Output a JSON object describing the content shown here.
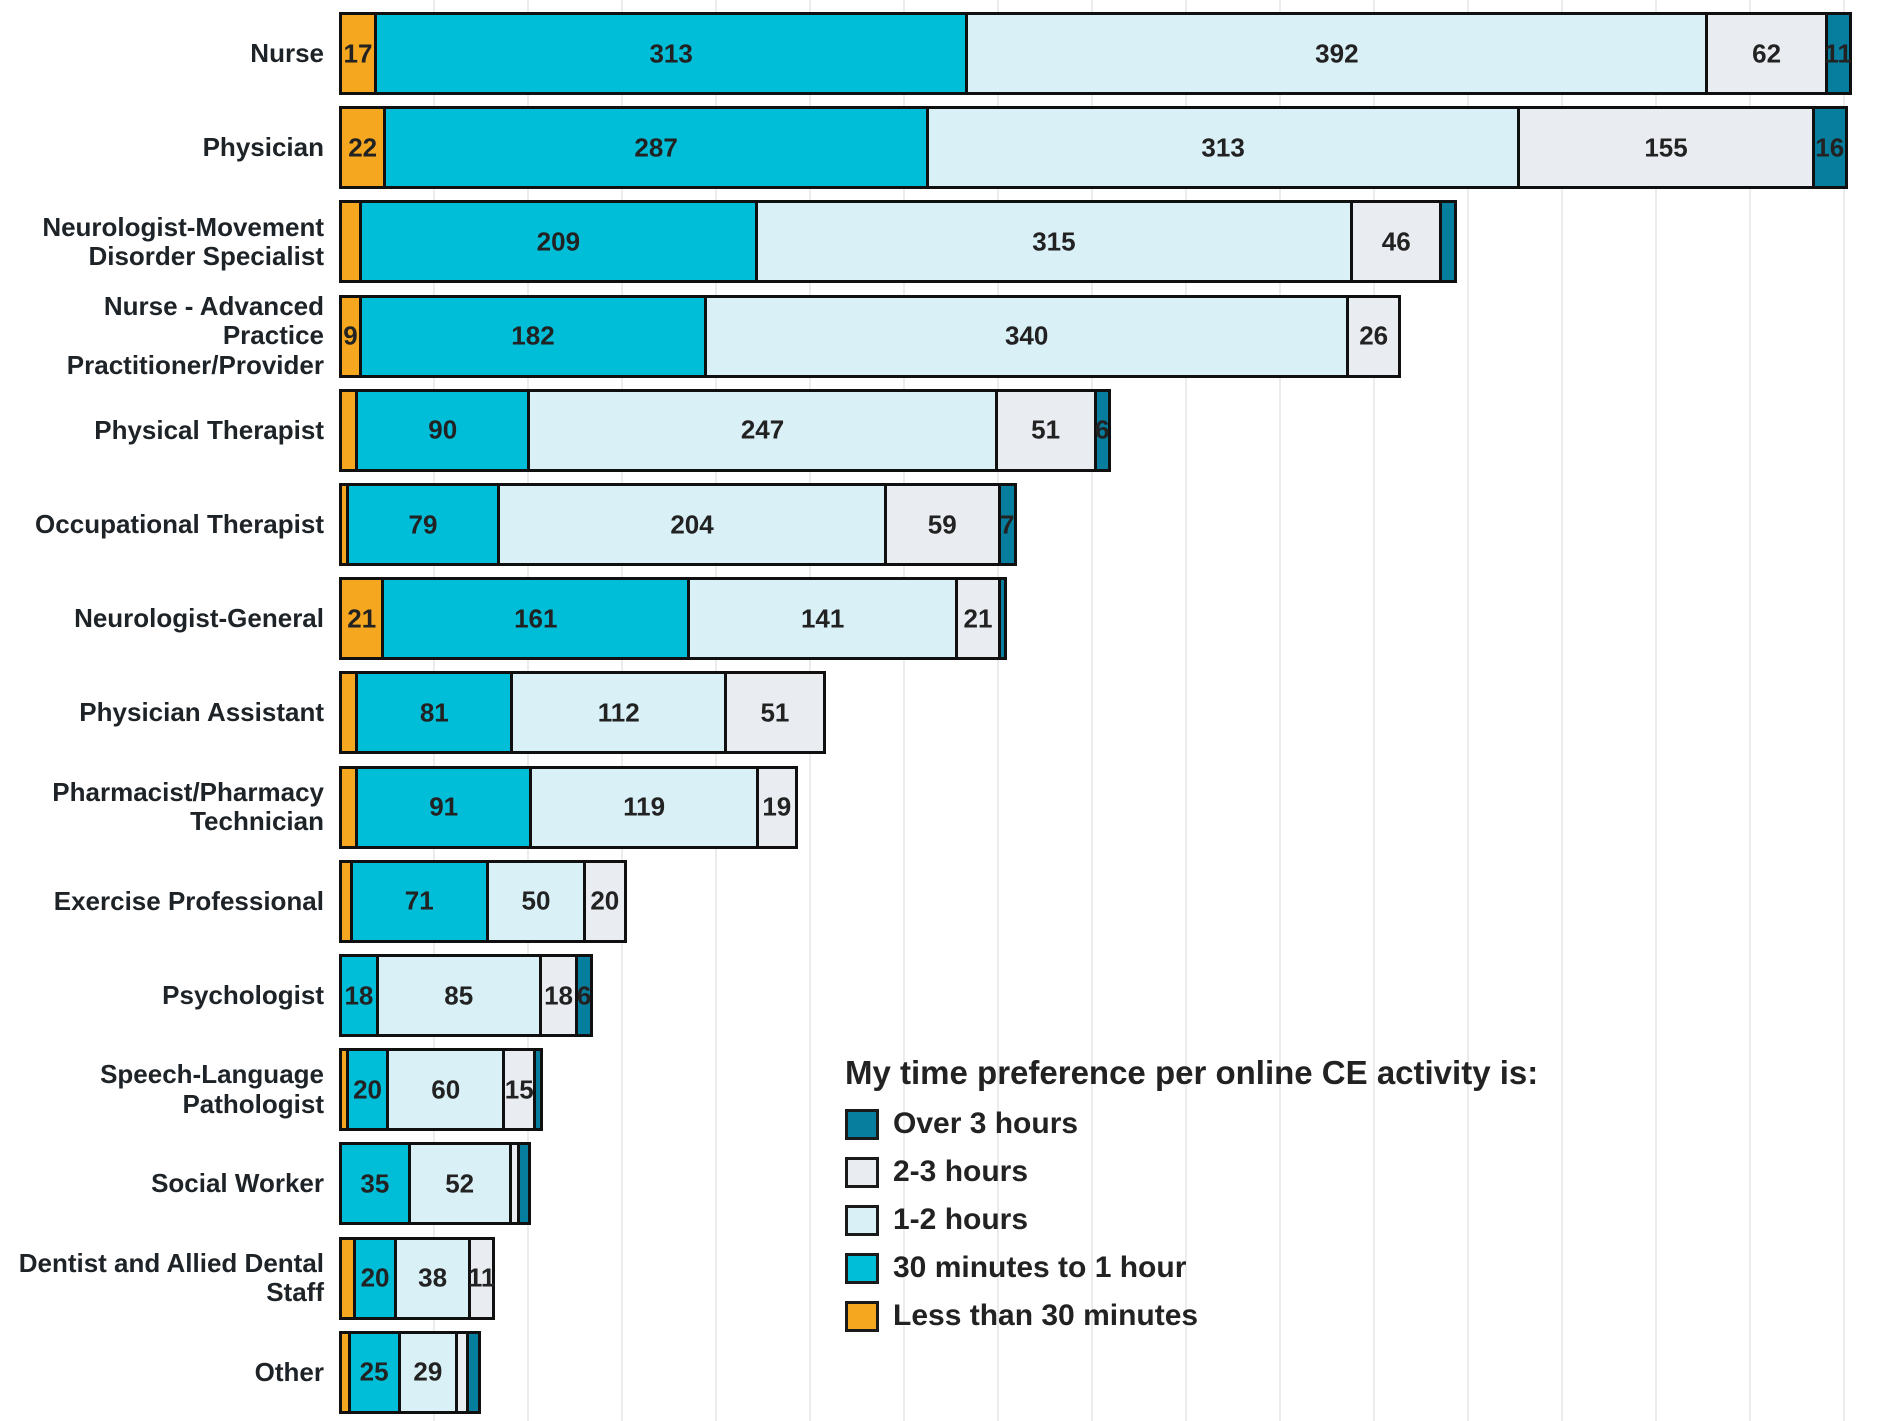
{
  "legend": {
    "title": "My time preference per online CE activity is:",
    "items": [
      {
        "label": "Over 3 hours",
        "color": "#087E9E"
      },
      {
        "label": "2-3 hours",
        "color": "#E9EDF1"
      },
      {
        "label": "1-2 hours",
        "color": "#D9F0F7"
      },
      {
        "label": "30 minutes to 1 hour",
        "color": "#00BDD8"
      },
      {
        "label": "Less than 30 minutes",
        "color": "#F5A71F"
      }
    ]
  },
  "chart_data": {
    "type": "bar",
    "orientation": "horizontal",
    "stacked": true,
    "title": "",
    "legend_title": "My time preference per online CE activity is:",
    "legend_position": "bottom-right",
    "grid": "vertical",
    "x_gridline_interval_units": 50,
    "x_range": [
      0,
      800
    ],
    "stack_order_left_to_right": [
      "Less than 30 minutes",
      "30 minutes to 1 hour",
      "1-2 hours",
      "2-3 hours",
      "Over 3 hours"
    ],
    "categories": [
      "Nurse",
      "Physician",
      "Neurologist-Movement Disorder Specialist",
      "Nurse - Advanced Practice Practitioner/Provider",
      "Physical Therapist",
      "Occupational Therapist",
      "Neurologist-General",
      "Physician Assistant",
      "Pharmacist/Pharmacy Technician",
      "Exercise Professional",
      "Psychologist",
      "Speech-Language Pathologist",
      "Social Worker",
      "Dentist and Allied Dental Staff",
      "Other"
    ],
    "rows": [
      {
        "category": "Nurse",
        "category_lines": [
          "Nurse"
        ],
        "segments": [
          {
            "series": "Less than 30 minutes",
            "value": 17,
            "label": "17"
          },
          {
            "series": "30 minutes to 1 hour",
            "value": 313,
            "label": "313"
          },
          {
            "series": "1-2 hours",
            "value": 392,
            "label": "392"
          },
          {
            "series": "2-3 hours",
            "value": 62,
            "label": "62"
          },
          {
            "series": "Over 3 hours",
            "value": 11,
            "label": "11"
          }
        ]
      },
      {
        "category": "Physician",
        "category_lines": [
          "Physician"
        ],
        "segments": [
          {
            "series": "Less than 30 minutes",
            "value": 22,
            "label": "22"
          },
          {
            "series": "30 minutes to 1 hour",
            "value": 287,
            "label": "287"
          },
          {
            "series": "1-2 hours",
            "value": 313,
            "label": "313"
          },
          {
            "series": "2-3 hours",
            "value": 155,
            "label": "155"
          },
          {
            "series": "Over 3 hours",
            "value": 16,
            "label": "16"
          }
        ]
      },
      {
        "category": "Neurologist-Movement Disorder Specialist",
        "category_lines": [
          "Neurologist-Movement",
          "Disorder Specialist"
        ],
        "segments": [
          {
            "series": "Less than 30 minutes",
            "value": 9,
            "label": ""
          },
          {
            "series": "30 minutes to 1 hour",
            "value": 209,
            "label": "209"
          },
          {
            "series": "1-2 hours",
            "value": 315,
            "label": "315"
          },
          {
            "series": "2-3 hours",
            "value": 46,
            "label": "46"
          },
          {
            "series": "Over 3 hours",
            "value": 6,
            "label": ""
          }
        ]
      },
      {
        "category": "Nurse - Advanced Practice Practitioner/Provider",
        "category_lines": [
          "Nurse - Advanced Practice",
          "Practitioner/Provider"
        ],
        "segments": [
          {
            "series": "Less than 30 minutes",
            "value": 9,
            "label": "9"
          },
          {
            "series": "30 minutes to 1 hour",
            "value": 182,
            "label": "182"
          },
          {
            "series": "1-2 hours",
            "value": 340,
            "label": "340"
          },
          {
            "series": "2-3 hours",
            "value": 26,
            "label": "26"
          }
        ]
      },
      {
        "category": "Physical Therapist",
        "category_lines": [
          "Physical Therapist"
        ],
        "segments": [
          {
            "series": "Less than 30 minutes",
            "value": 7,
            "label": ""
          },
          {
            "series": "30 minutes to 1 hour",
            "value": 90,
            "label": "90"
          },
          {
            "series": "1-2 hours",
            "value": 247,
            "label": "247"
          },
          {
            "series": "2-3 hours",
            "value": 51,
            "label": "51"
          },
          {
            "series": "Over 3 hours",
            "value": 6,
            "label": "6"
          }
        ]
      },
      {
        "category": "Occupational Therapist",
        "category_lines": [
          "Occupational Therapist"
        ],
        "segments": [
          {
            "series": "Less than 30 minutes",
            "value": 2,
            "label": ""
          },
          {
            "series": "30 minutes to 1 hour",
            "value": 79,
            "label": "79"
          },
          {
            "series": "1-2 hours",
            "value": 204,
            "label": "204"
          },
          {
            "series": "2-3 hours",
            "value": 59,
            "label": "59"
          },
          {
            "series": "Over 3 hours",
            "value": 7,
            "label": "7"
          }
        ]
      },
      {
        "category": "Neurologist-General",
        "category_lines": [
          "Neurologist-General"
        ],
        "segments": [
          {
            "series": "Less than 30 minutes",
            "value": 21,
            "label": "21"
          },
          {
            "series": "30 minutes to 1 hour",
            "value": 161,
            "label": "161"
          },
          {
            "series": "1-2 hours",
            "value": 141,
            "label": "141"
          },
          {
            "series": "2-3 hours",
            "value": 21,
            "label": "21"
          },
          {
            "series": "Over 3 hours",
            "value": 2,
            "label": ""
          }
        ]
      },
      {
        "category": "Physician Assistant",
        "category_lines": [
          "Physician Assistant"
        ],
        "segments": [
          {
            "series": "Less than 30 minutes",
            "value": 7,
            "label": ""
          },
          {
            "series": "30 minutes to 1 hour",
            "value": 81,
            "label": "81"
          },
          {
            "series": "1-2 hours",
            "value": 112,
            "label": "112"
          },
          {
            "series": "2-3 hours",
            "value": 51,
            "label": "51"
          }
        ]
      },
      {
        "category": "Pharmacist/Pharmacy Technician",
        "category_lines": [
          "Pharmacist/Pharmacy",
          "Technician"
        ],
        "segments": [
          {
            "series": "Less than 30 minutes",
            "value": 7,
            "label": ""
          },
          {
            "series": "30 minutes to 1 hour",
            "value": 91,
            "label": "91"
          },
          {
            "series": "1-2 hours",
            "value": 119,
            "label": "119"
          },
          {
            "series": "2-3 hours",
            "value": 19,
            "label": "19"
          }
        ]
      },
      {
        "category": "Exercise Professional",
        "category_lines": [
          "Exercise Professional"
        ],
        "segments": [
          {
            "series": "Less than 30 minutes",
            "value": 4,
            "label": ""
          },
          {
            "series": "30 minutes to 1 hour",
            "value": 71,
            "label": "71"
          },
          {
            "series": "1-2 hours",
            "value": 50,
            "label": "50"
          },
          {
            "series": "2-3 hours",
            "value": 20,
            "label": "20"
          }
        ]
      },
      {
        "category": "Psychologist",
        "category_lines": [
          "Psychologist"
        ],
        "segments": [
          {
            "series": "30 minutes to 1 hour",
            "value": 18,
            "label": "18"
          },
          {
            "series": "1-2 hours",
            "value": 85,
            "label": "85"
          },
          {
            "series": "2-3 hours",
            "value": 18,
            "label": "18"
          },
          {
            "series": "Over 3 hours",
            "value": 6,
            "label": "6"
          }
        ]
      },
      {
        "category": "Speech-Language Pathologist",
        "category_lines": [
          "Speech-Language",
          "Pathologist"
        ],
        "segments": [
          {
            "series": "Less than 30 minutes",
            "value": 2,
            "label": ""
          },
          {
            "series": "30 minutes to 1 hour",
            "value": 20,
            "label": "20"
          },
          {
            "series": "1-2 hours",
            "value": 60,
            "label": "60"
          },
          {
            "series": "2-3 hours",
            "value": 15,
            "label": "15"
          },
          {
            "series": "Over 3 hours",
            "value": 2,
            "label": ""
          }
        ]
      },
      {
        "category": "Social Worker",
        "category_lines": [
          "Social Worker"
        ],
        "segments": [
          {
            "series": "30 minutes to 1 hour",
            "value": 35,
            "label": "35"
          },
          {
            "series": "1-2 hours",
            "value": 52,
            "label": "52"
          },
          {
            "series": "2-3 hours",
            "value": 3,
            "label": ""
          },
          {
            "series": "Over 3 hours",
            "value": 4,
            "label": ""
          }
        ]
      },
      {
        "category": "Dentist and Allied Dental Staff",
        "category_lines": [
          "Dentist and Allied Dental",
          "Staff"
        ],
        "segments": [
          {
            "series": "Less than 30 minutes",
            "value": 6,
            "label": ""
          },
          {
            "series": "30 minutes to 1 hour",
            "value": 20,
            "label": "20"
          },
          {
            "series": "1-2 hours",
            "value": 38,
            "label": "38"
          },
          {
            "series": "2-3 hours",
            "value": 11,
            "label": "11"
          }
        ]
      },
      {
        "category": "Other",
        "category_lines": [
          "Other"
        ],
        "segments": [
          {
            "series": "Less than 30 minutes",
            "value": 3,
            "label": ""
          },
          {
            "series": "30 minutes to 1 hour",
            "value": 25,
            "label": "25"
          },
          {
            "series": "1-2 hours",
            "value": 29,
            "label": "29"
          },
          {
            "series": "2-3 hours",
            "value": 4,
            "label": ""
          },
          {
            "series": "Over 3 hours",
            "value": 5,
            "label": ""
          }
        ]
      }
    ]
  }
}
